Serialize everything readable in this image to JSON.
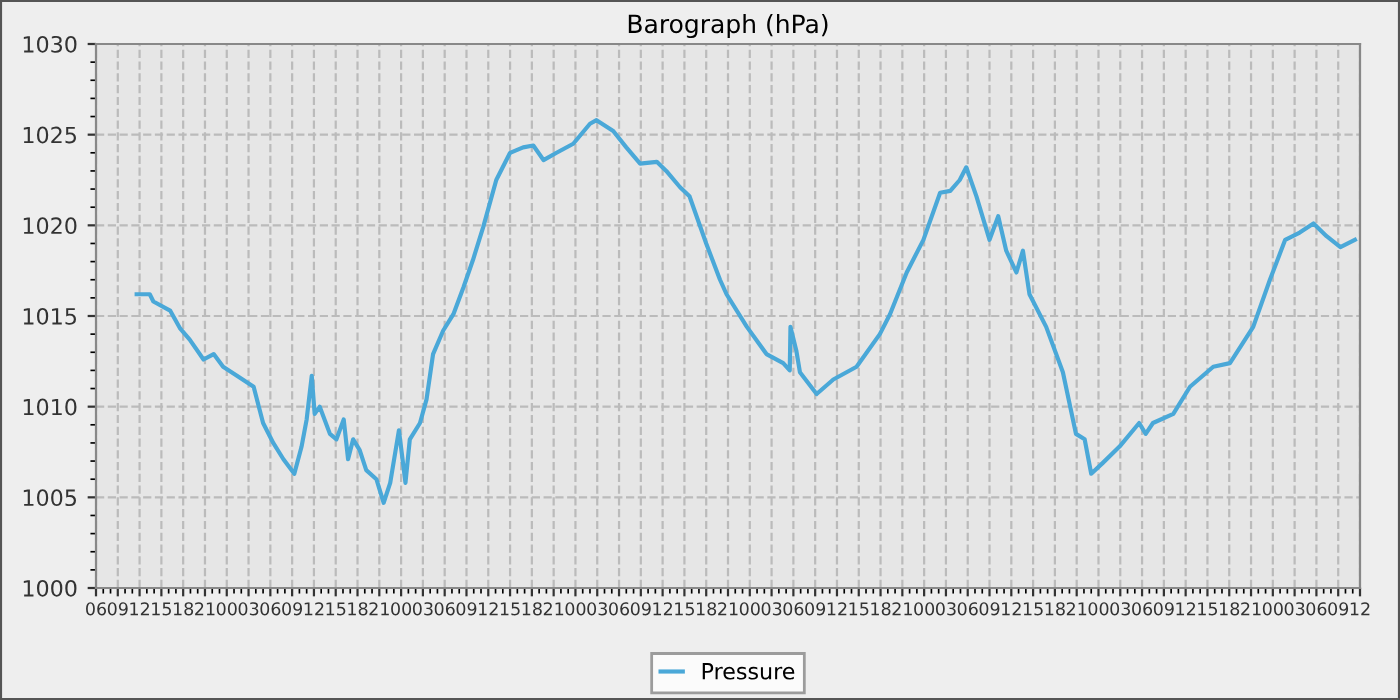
{
  "chart_data": {
    "type": "line",
    "title": "Barograph (hPa)",
    "x": [
      11.6,
      13.4,
      13.9,
      16.2,
      17.6,
      18.9,
      20.8,
      22.2,
      23.5,
      25.4,
      27.7,
      29.0,
      30.4,
      31.8,
      33.3,
      34.3,
      35.0,
      35.7,
      36.1,
      36.8,
      38.2,
      39.1,
      40.1,
      40.7,
      41.4,
      42.3,
      43.2,
      44.6,
      45.6,
      46.5,
      47.7,
      48.6,
      49.2,
      50.6,
      51.5,
      52.4,
      53.8,
      55.2,
      56.6,
      57.9,
      59.3,
      61.1,
      63.0,
      64.8,
      66.2,
      67.6,
      69.4,
      71.7,
      74.0,
      74.9,
      77.2,
      79.0,
      80.9,
      83.2,
      84.5,
      86.4,
      87.7,
      90.0,
      91.9,
      92.8,
      95.6,
      98.3,
      100.6,
      101.5,
      101.6,
      102.4,
      102.9,
      105.2,
      107.5,
      110.7,
      113.9,
      115.3,
      117.6,
      119.9,
      122.2,
      123.6,
      124.9,
      125.8,
      127.2,
      129.0,
      130.2,
      131.3,
      132.7,
      133.6,
      134.5,
      136.8,
      139.1,
      140.9,
      142.1,
      143.0,
      144.6,
      146.9,
      149.6,
      150.5,
      151.5,
      154.3,
      156.6,
      159.8,
      162.1,
      165.3,
      167.6,
      169.7,
      171.7,
      173.6,
      175.4,
      177.3,
      179.3
    ],
    "series": [
      {
        "name": "Pressure",
        "color": "#4aa8d8",
        "values": [
          1016.2,
          1016.2,
          1015.8,
          1015.3,
          1014.3,
          1013.7,
          1012.6,
          1012.9,
          1012.2,
          1011.7,
          1011.1,
          1009.1,
          1008.0,
          1007.1,
          1006.3,
          1007.8,
          1009.3,
          1011.7,
          1009.6,
          1010.0,
          1008.5,
          1008.2,
          1009.3,
          1007.1,
          1008.2,
          1007.6,
          1006.5,
          1006.0,
          1004.7,
          1005.8,
          1008.7,
          1005.8,
          1008.2,
          1009.1,
          1010.4,
          1012.9,
          1014.2,
          1015.1,
          1016.6,
          1018.1,
          1019.9,
          1022.5,
          1024.0,
          1024.3,
          1024.4,
          1023.6,
          1024.0,
          1024.5,
          1025.6,
          1025.8,
          1025.2,
          1024.3,
          1023.4,
          1023.5,
          1023.0,
          1022.1,
          1021.6,
          1019.0,
          1017.0,
          1016.2,
          1014.4,
          1012.9,
          1012.4,
          1012.0,
          1014.4,
          1013.1,
          1011.9,
          1010.7,
          1011.5,
          1012.2,
          1014.0,
          1015.1,
          1017.4,
          1019.2,
          1021.8,
          1021.9,
          1022.5,
          1023.2,
          1021.6,
          1019.2,
          1020.5,
          1018.6,
          1017.4,
          1018.6,
          1016.2,
          1014.4,
          1011.9,
          1008.5,
          1008.2,
          1006.3,
          1006.9,
          1007.8,
          1009.1,
          1008.5,
          1009.1,
          1009.6,
          1011.1,
          1012.2,
          1012.4,
          1014.4,
          1017.0,
          1019.2,
          1019.6,
          1020.1,
          1019.4,
          1018.8,
          1019.2
        ]
      }
    ],
    "xlim": [
      6,
      180
    ],
    "xticks": [
      {
        "value": 6,
        "label": "06"
      },
      {
        "value": 9,
        "label": "09"
      },
      {
        "value": 12,
        "label": "12"
      },
      {
        "value": 15,
        "label": "15"
      },
      {
        "value": 18,
        "label": "18"
      },
      {
        "value": 21,
        "label": "21"
      },
      {
        "value": 24,
        "label": "00"
      },
      {
        "value": 27,
        "label": "03"
      },
      {
        "value": 30,
        "label": "06"
      },
      {
        "value": 33,
        "label": "09"
      },
      {
        "value": 36,
        "label": "12"
      },
      {
        "value": 39,
        "label": "15"
      },
      {
        "value": 42,
        "label": "18"
      },
      {
        "value": 45,
        "label": "21"
      },
      {
        "value": 48,
        "label": "00"
      },
      {
        "value": 51,
        "label": "03"
      },
      {
        "value": 54,
        "label": "06"
      },
      {
        "value": 57,
        "label": "09"
      },
      {
        "value": 60,
        "label": "12"
      },
      {
        "value": 63,
        "label": "15"
      },
      {
        "value": 66,
        "label": "18"
      },
      {
        "value": 69,
        "label": "21"
      },
      {
        "value": 72,
        "label": "00"
      },
      {
        "value": 75,
        "label": "03"
      },
      {
        "value": 78,
        "label": "06"
      },
      {
        "value": 81,
        "label": "09"
      },
      {
        "value": 84,
        "label": "12"
      },
      {
        "value": 87,
        "label": "15"
      },
      {
        "value": 90,
        "label": "18"
      },
      {
        "value": 93,
        "label": "21"
      },
      {
        "value": 96,
        "label": "00"
      },
      {
        "value": 99,
        "label": "03"
      },
      {
        "value": 102,
        "label": "06"
      },
      {
        "value": 105,
        "label": "09"
      },
      {
        "value": 108,
        "label": "12"
      },
      {
        "value": 111,
        "label": "15"
      },
      {
        "value": 114,
        "label": "18"
      },
      {
        "value": 117,
        "label": "21"
      },
      {
        "value": 120,
        "label": "00"
      },
      {
        "value": 123,
        "label": "03"
      },
      {
        "value": 126,
        "label": "06"
      },
      {
        "value": 129,
        "label": "09"
      },
      {
        "value": 132,
        "label": "12"
      },
      {
        "value": 135,
        "label": "15"
      },
      {
        "value": 138,
        "label": "18"
      },
      {
        "value": 141,
        "label": "21"
      },
      {
        "value": 144,
        "label": "00"
      },
      {
        "value": 147,
        "label": "03"
      },
      {
        "value": 150,
        "label": "06"
      },
      {
        "value": 153,
        "label": "09"
      },
      {
        "value": 156,
        "label": "12"
      },
      {
        "value": 159,
        "label": "15"
      },
      {
        "value": 162,
        "label": "18"
      },
      {
        "value": 165,
        "label": "21"
      },
      {
        "value": 168,
        "label": "00"
      },
      {
        "value": 171,
        "label": "03"
      },
      {
        "value": 174,
        "label": "06"
      },
      {
        "value": 177,
        "label": "09"
      },
      {
        "value": 180,
        "label": "12"
      }
    ],
    "ylim": [
      1000,
      1030
    ],
    "yticks": [
      1000,
      1005,
      1010,
      1015,
      1020,
      1025,
      1030
    ],
    "grid": true,
    "legend": "bottom",
    "marker": "none",
    "line_style": "solid"
  }
}
